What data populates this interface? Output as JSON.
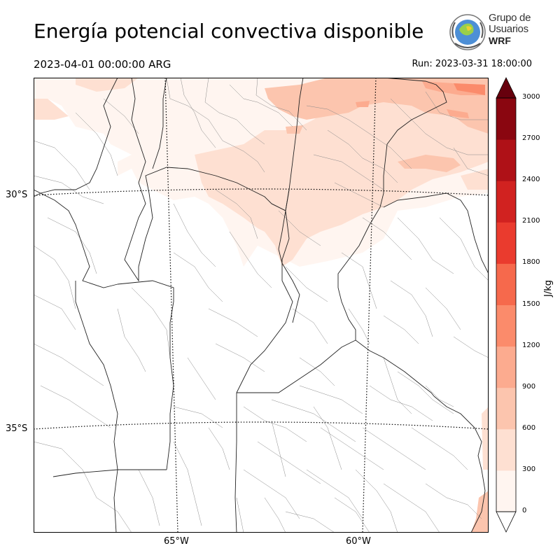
{
  "title": "Energía potencial convectiva disponible",
  "valid_time": "2023-04-01 00:00:00 ARG",
  "run": "Run: 2023-03-31 18:00:00",
  "logo": {
    "line1": "Grupo de",
    "line2": "Usuarios",
    "line3": "WRF"
  },
  "map": {
    "lat_labels": [
      "30°S",
      "35°S"
    ],
    "lon_labels": [
      "65°W",
      "60°W"
    ]
  },
  "colorbar": {
    "unit": "J/kg",
    "ticks": [
      "0",
      "300",
      "600",
      "900",
      "1200",
      "1500",
      "1800",
      "2100",
      "2400",
      "2700",
      "3000"
    ],
    "colors": [
      "#fff5f0",
      "#fee0d2",
      "#fcc5ae",
      "#fcab8f",
      "#fb8b6b",
      "#f6694c",
      "#ea3b2e",
      "#d12220",
      "#af1117",
      "#8a0610",
      "#67000d"
    ],
    "over_color": "#67000d",
    "under_color": "#ffffff"
  },
  "colors": {
    "cape_low": "#fff5f0",
    "cape_300": "#fee0d2",
    "cape_600": "#fcc5ae",
    "cape_900": "#fcab8f"
  }
}
